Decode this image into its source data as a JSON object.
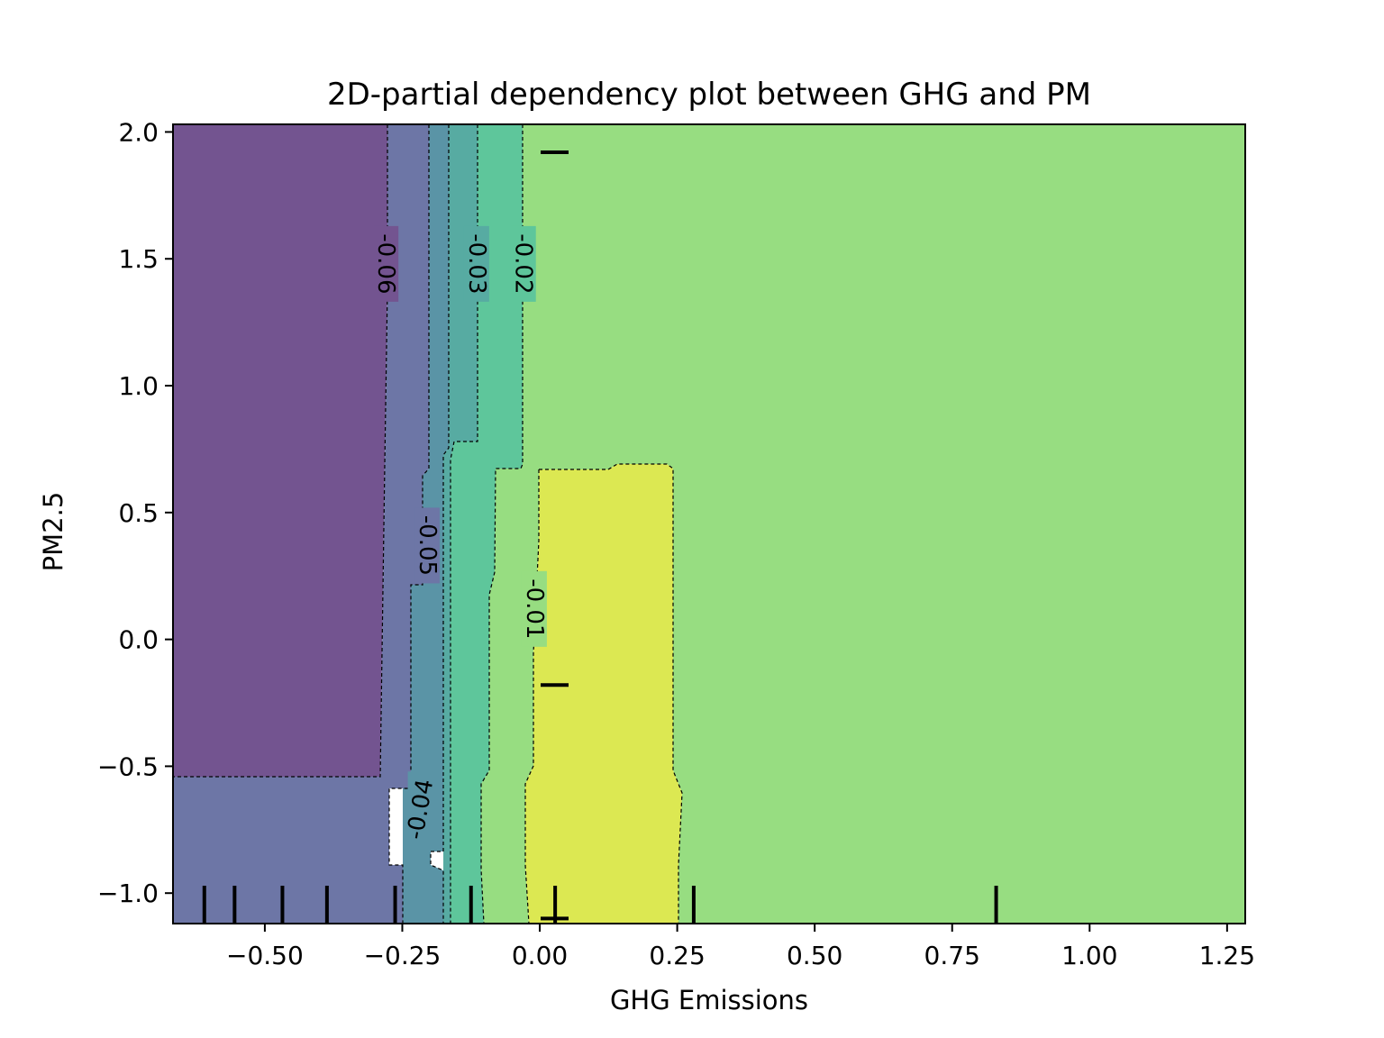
{
  "chart_data": {
    "type": "heatmap",
    "title": "2D-partial dependency plot between GHG and PM",
    "xlabel": "GHG Emissions",
    "ylabel": "PM2.5",
    "xlim": [
      -0.667,
      1.283
    ],
    "ylim": [
      -1.12,
      2.03
    ],
    "x_ticks": [
      -0.5,
      -0.25,
      0.0,
      0.25,
      0.5,
      0.75,
      1.0,
      1.25
    ],
    "x_tick_labels": [
      "−0.50",
      "−0.25",
      "0.00",
      "0.25",
      "0.50",
      "0.75",
      "1.00",
      "1.25"
    ],
    "y_ticks": [
      -1.0,
      -0.5,
      0.0,
      0.5,
      1.0,
      1.5,
      2.0
    ],
    "y_tick_labels": [
      "−1.0",
      "−0.5",
      "0.0",
      "0.5",
      "1.0",
      "1.5",
      "2.0"
    ],
    "grid": false,
    "colormap": "viridis",
    "contour_levels": [
      {
        "label": "-0.06",
        "color": "#735490"
      },
      {
        "label": "-0.05",
        "color": "#6d76a6"
      },
      {
        "label": "-0.04",
        "color": "#5a94a6"
      },
      {
        "label": "-0.03",
        "color": "#57aba2"
      },
      {
        "label": "-0.02",
        "color": "#5ec69b"
      },
      {
        "label": "-0.01",
        "color": "#97dd81"
      },
      {
        "label": "0.00",
        "color": "#dce852"
      }
    ],
    "contour_label_positions": [
      {
        "label": "-0.06",
        "x": -0.28,
        "y": 1.48
      },
      {
        "label": "-0.03",
        "x": -0.115,
        "y": 1.48
      },
      {
        "label": "-0.02",
        "x": -0.03,
        "y": 1.48
      },
      {
        "label": "-0.05",
        "x": -0.205,
        "y": 0.37
      },
      {
        "label": "-0.01",
        "x": -0.01,
        "y": 0.12
      },
      {
        "label": "-0.04",
        "x": -0.217,
        "y": -0.67
      }
    ],
    "rug_x": [
      -0.61,
      -0.555,
      -0.468,
      -0.387,
      -0.263,
      -0.125,
      0.028,
      0.28,
      0.83
    ],
    "rug_y": [
      1.92,
      -0.18,
      -1.1
    ]
  }
}
